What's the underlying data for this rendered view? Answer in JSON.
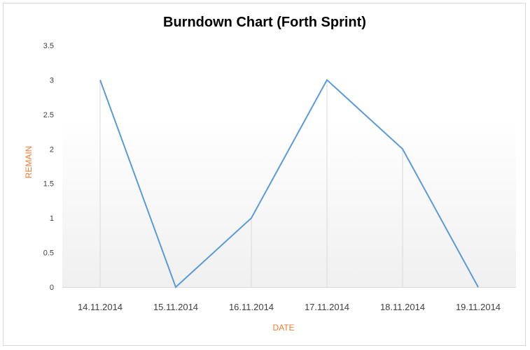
{
  "chart_data": {
    "type": "line",
    "title": "Burndown Chart (Forth Sprint)",
    "xlabel": "DATE",
    "ylabel": "REMAIN",
    "categories": [
      "14.11.2014",
      "15.11.2014",
      "16.11.2014",
      "17.11.2014",
      "18.11.2014",
      "19.11.2014"
    ],
    "series": [
      {
        "values": [
          3,
          0,
          1,
          3,
          2,
          0
        ]
      }
    ],
    "ylim": [
      0,
      3.5
    ],
    "yticks": [
      "0",
      "0.5",
      "1",
      "1.5",
      "2",
      "2.5",
      "3",
      "3.5"
    ],
    "grid": false,
    "drop_lines": true,
    "plot_background": "gradient-white-to-light-gray",
    "colors": {
      "line": "#5b9bd5",
      "axis_labels": "#ed7d31"
    }
  }
}
